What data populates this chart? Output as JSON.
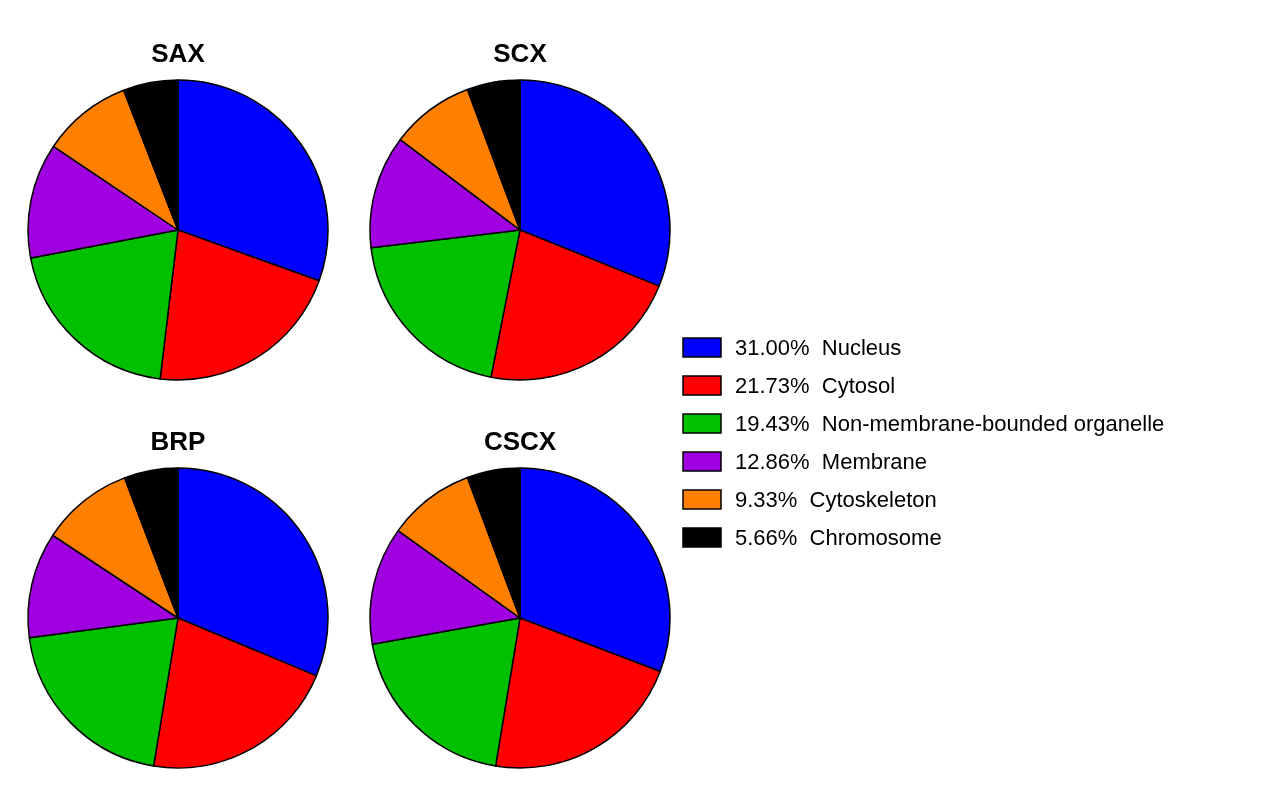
{
  "chart_data": [
    {
      "type": "pie",
      "title": "SAX",
      "categories": [
        "31.00%  Nucleus",
        "21.73%  Cytosol",
        "19.43%  Non-membrane-bounded organelle",
        "12.86%  Membrane",
        "9.33%  Cytoskeleton",
        "5.66%  Chromosome"
      ],
      "values": [
        30.5,
        21.4,
        20.1,
        12.4,
        9.7,
        5.9
      ],
      "colors": [
        "#0000ff",
        "#ff0000",
        "#00c000",
        "#a000e0",
        "#ff8000",
        "#000000"
      ],
      "legend": "right"
    },
    {
      "type": "pie",
      "title": "SCX",
      "categories": [
        null,
        null,
        null,
        null,
        null,
        null
      ],
      "values": [
        31.1,
        22.0,
        20.0,
        12.2,
        9.0,
        5.7
      ],
      "colors": [
        "#0000ff",
        "#ff0000",
        "#00c000",
        "#a000e0",
        "#ff8000",
        "#000000"
      ]
    },
    {
      "type": "pie",
      "title": "BRP",
      "categories": [
        null,
        null,
        null,
        null,
        null,
        null
      ],
      "values": [
        31.3,
        21.3,
        20.3,
        11.4,
        9.9,
        5.8
      ],
      "colors": [
        "#0000ff",
        "#ff0000",
        "#00c000",
        "#a000e0",
        "#ff8000",
        "#000000"
      ]
    },
    {
      "type": "pie",
      "title": "CSCX",
      "categories": [
        null,
        null,
        null,
        null,
        null,
        null
      ],
      "values": [
        30.8,
        21.8,
        19.6,
        12.7,
        9.4,
        5.7
      ],
      "colors": [
        "#0000ff",
        "#ff0000",
        "#00c000",
        "#a000e0",
        "#ff8000",
        "#000000"
      ]
    }
  ]
}
